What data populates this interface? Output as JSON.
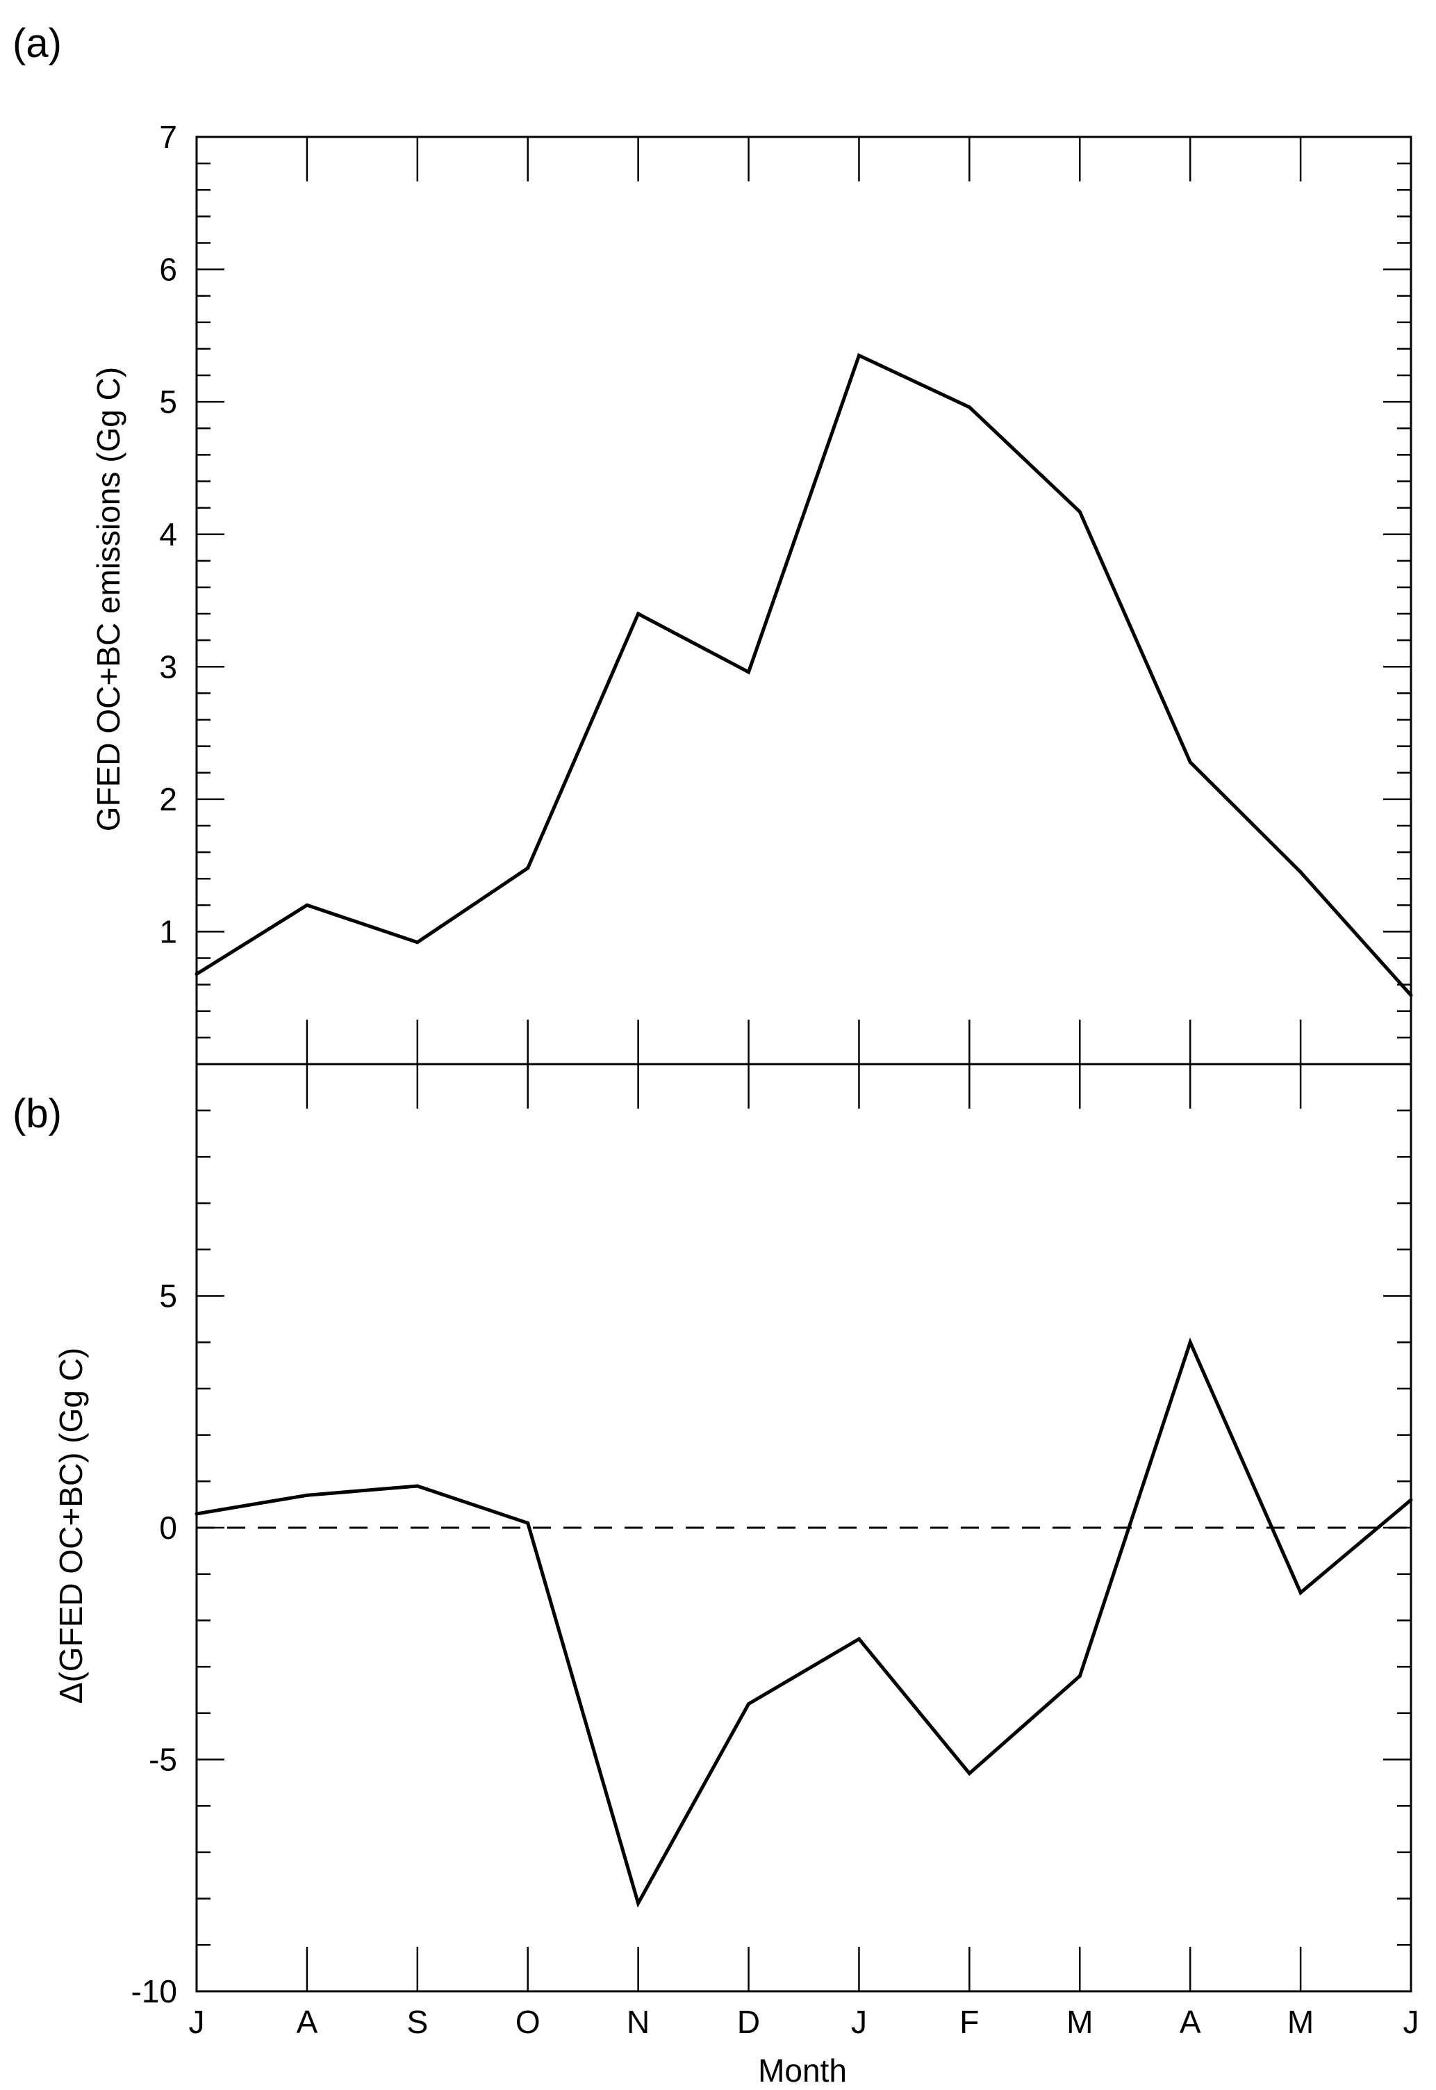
{
  "chart_data": [
    {
      "type": "line",
      "panel_label": "(a)",
      "ylabel": "GFED OC+BC emissions (Gg C)",
      "xlabel": "",
      "categories": [
        "J",
        "A",
        "S",
        "O",
        "N",
        "D",
        "J",
        "F",
        "M",
        "A",
        "M",
        "J"
      ],
      "ylim": [
        0,
        7
      ],
      "yticks": [
        1,
        2,
        3,
        4,
        5,
        6,
        7
      ],
      "grid": false,
      "series": [
        {
          "values": [
            0.68,
            1.2,
            0.92,
            1.48,
            3.4,
            2.96,
            5.35,
            4.96,
            4.17,
            2.28,
            1.45,
            0.52
          ]
        }
      ]
    },
    {
      "type": "line",
      "panel_label": "(b)",
      "ylabel": "Δ(GFED OC+BC) (Gg C)",
      "xlabel": "Month",
      "categories": [
        "J",
        "A",
        "S",
        "O",
        "N",
        "D",
        "J",
        "F",
        "M",
        "A",
        "M",
        "J"
      ],
      "ylim": [
        -10,
        10
      ],
      "yticks": [
        -10,
        -5,
        0,
        5
      ],
      "ytick_labels": [
        "-10",
        "-5",
        "0",
        "5"
      ],
      "reference_line": {
        "y": 0,
        "style": "dashed"
      },
      "grid": false,
      "series": [
        {
          "values": [
            0.3,
            0.7,
            0.9,
            0.1,
            -8.1,
            -3.8,
            -2.4,
            -5.3,
            -3.2,
            4.0,
            -1.4,
            0.6
          ]
        }
      ]
    }
  ]
}
